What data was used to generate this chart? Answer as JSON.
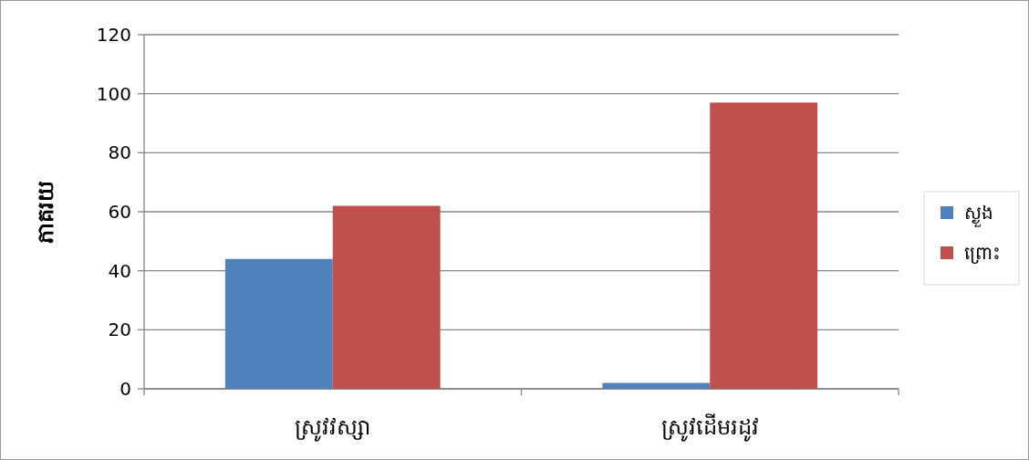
{
  "chart_data": {
    "type": "bar",
    "ylabel": "ភាគរយ",
    "categories": [
      "ស្រូវវស្សា",
      "ស្រូវដើមរដូវ"
    ],
    "series": [
      {
        "name": "ស្ងួង",
        "color": "#4f81bd",
        "values": [
          44,
          2
        ]
      },
      {
        "name": "ព្រោះ",
        "color": "#c0504d",
        "values": [
          62,
          97
        ]
      }
    ],
    "ylim": [
      0,
      120
    ],
    "yticks": [
      0,
      20,
      40,
      60,
      80,
      100,
      120
    ],
    "grid": "y",
    "legend": "right"
  }
}
